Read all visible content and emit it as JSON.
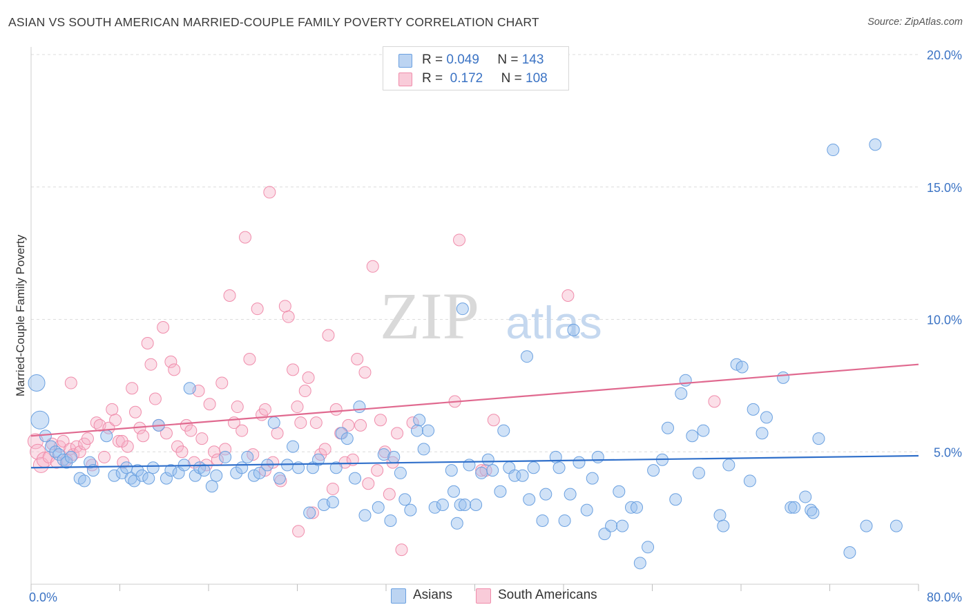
{
  "title": "ASIAN VS SOUTH AMERICAN MARRIED-COUPLE FAMILY POVERTY CORRELATION CHART",
  "source": "Source: ZipAtlas.com",
  "watermark": {
    "part1": "ZIP",
    "part2": "atlas"
  },
  "legend_top": [
    {
      "r_label": "R =",
      "r_value": "0.049",
      "n_label": "N =",
      "n_value": "143"
    },
    {
      "r_label": "R =",
      "r_value": "0.172",
      "n_label": "N =",
      "n_value": "108"
    }
  ],
  "legend_bottom": [
    "Asians",
    "South Americans"
  ],
  "chart_data": {
    "type": "scatter",
    "title": "ASIAN VS SOUTH AMERICAN MARRIED-COUPLE FAMILY POVERTY CORRELATION CHART",
    "xlabel": "",
    "ylabel": "Married-Couple Family Poverty",
    "xlim": [
      0,
      80
    ],
    "ylim": [
      0,
      20
    ],
    "x_tick_labels": [
      "0.0%",
      "80.0%"
    ],
    "y_tick_labels": [
      "5.0%",
      "10.0%",
      "15.0%",
      "20.0%"
    ],
    "y_ticks": [
      5,
      10,
      15,
      20
    ],
    "grid": "horizontal dashed",
    "legend_placement": "top-center and bottom",
    "colors": {
      "asians": "#6aa0e0",
      "south_americans": "#f08cab",
      "asians_line": "#2f6fca",
      "south_americans_line": "#e0698f"
    },
    "series": [
      {
        "name": "Asians",
        "r": 0.049,
        "n": 143,
        "trend": {
          "x": [
            0,
            80
          ],
          "y": [
            4.4,
            4.85
          ]
        },
        "points": [
          [
            0.5,
            7.6
          ],
          [
            0.8,
            6.2
          ],
          [
            1.3,
            5.6
          ],
          [
            1.8,
            5.2
          ],
          [
            2.2,
            5.0
          ],
          [
            2.5,
            4.9
          ],
          [
            2.9,
            4.7
          ],
          [
            3.2,
            4.6
          ],
          [
            3.6,
            4.8
          ],
          [
            4.4,
            4.0
          ],
          [
            4.8,
            3.9
          ],
          [
            5.3,
            4.6
          ],
          [
            5.6,
            4.3
          ],
          [
            6.8,
            5.6
          ],
          [
            7.5,
            4.1
          ],
          [
            8.2,
            4.2
          ],
          [
            8.6,
            4.4
          ],
          [
            9.0,
            4.0
          ],
          [
            9.3,
            3.9
          ],
          [
            9.6,
            4.3
          ],
          [
            10.0,
            4.1
          ],
          [
            10.6,
            4.0
          ],
          [
            11.0,
            4.4
          ],
          [
            11.5,
            6.0
          ],
          [
            12.2,
            4.0
          ],
          [
            12.6,
            4.3
          ],
          [
            13.3,
            4.2
          ],
          [
            13.8,
            4.5
          ],
          [
            14.3,
            7.4
          ],
          [
            14.8,
            4.1
          ],
          [
            15.2,
            4.4
          ],
          [
            15.6,
            4.3
          ],
          [
            16.3,
            3.7
          ],
          [
            16.7,
            4.1
          ],
          [
            17.5,
            4.8
          ],
          [
            18.5,
            4.2
          ],
          [
            19.0,
            4.4
          ],
          [
            19.5,
            4.8
          ],
          [
            20.1,
            4.1
          ],
          [
            20.6,
            4.2
          ],
          [
            21.3,
            4.5
          ],
          [
            21.9,
            6.1
          ],
          [
            22.4,
            4.0
          ],
          [
            23.1,
            4.5
          ],
          [
            23.6,
            5.2
          ],
          [
            24.1,
            4.4
          ],
          [
            25.1,
            2.7
          ],
          [
            25.4,
            4.4
          ],
          [
            25.9,
            4.7
          ],
          [
            26.4,
            3.0
          ],
          [
            27.2,
            3.1
          ],
          [
            27.5,
            4.4
          ],
          [
            28.0,
            5.7
          ],
          [
            28.5,
            5.5
          ],
          [
            29.2,
            4.0
          ],
          [
            29.6,
            6.7
          ],
          [
            30.1,
            2.6
          ],
          [
            31.3,
            2.9
          ],
          [
            31.8,
            4.9
          ],
          [
            32.4,
            2.4
          ],
          [
            32.7,
            4.8
          ],
          [
            33.3,
            4.2
          ],
          [
            33.7,
            3.2
          ],
          [
            34.2,
            2.8
          ],
          [
            35.0,
            6.2
          ],
          [
            34.8,
            5.8
          ],
          [
            35.4,
            5.1
          ],
          [
            35.8,
            5.8
          ],
          [
            36.4,
            2.9
          ],
          [
            37.1,
            3.0
          ],
          [
            37.9,
            4.3
          ],
          [
            38.1,
            3.5
          ],
          [
            38.4,
            2.3
          ],
          [
            38.7,
            3.0
          ],
          [
            38.9,
            10.4
          ],
          [
            39.1,
            3.0
          ],
          [
            39.5,
            4.5
          ],
          [
            40.1,
            3.0
          ],
          [
            40.6,
            4.2
          ],
          [
            41.2,
            4.7
          ],
          [
            41.6,
            4.3
          ],
          [
            42.3,
            3.5
          ],
          [
            42.6,
            5.8
          ],
          [
            43.1,
            4.4
          ],
          [
            43.6,
            4.1
          ],
          [
            44.3,
            4.1
          ],
          [
            44.7,
            8.6
          ],
          [
            44.9,
            3.2
          ],
          [
            45.3,
            4.4
          ],
          [
            46.1,
            2.4
          ],
          [
            46.4,
            3.4
          ],
          [
            47.3,
            4.8
          ],
          [
            47.6,
            4.4
          ],
          [
            48.1,
            2.4
          ],
          [
            48.6,
            3.4
          ],
          [
            48.9,
            9.6
          ],
          [
            49.4,
            4.6
          ],
          [
            50.1,
            2.8
          ],
          [
            50.6,
            4.0
          ],
          [
            51.1,
            4.8
          ],
          [
            51.7,
            1.9
          ],
          [
            52.3,
            2.2
          ],
          [
            53.0,
            3.5
          ],
          [
            53.3,
            2.2
          ],
          [
            54.1,
            2.9
          ],
          [
            54.6,
            2.9
          ],
          [
            54.9,
            0.8
          ],
          [
            55.6,
            1.4
          ],
          [
            56.1,
            4.3
          ],
          [
            56.9,
            4.7
          ],
          [
            57.4,
            5.9
          ],
          [
            58.1,
            3.2
          ],
          [
            58.6,
            7.2
          ],
          [
            59.0,
            7.7
          ],
          [
            59.6,
            5.6
          ],
          [
            60.2,
            4.2
          ],
          [
            60.6,
            5.8
          ],
          [
            62.1,
            2.6
          ],
          [
            62.4,
            2.2
          ],
          [
            62.9,
            4.5
          ],
          [
            63.6,
            8.3
          ],
          [
            64.1,
            8.2
          ],
          [
            64.8,
            3.9
          ],
          [
            65.1,
            6.6
          ],
          [
            65.9,
            5.7
          ],
          [
            66.3,
            6.3
          ],
          [
            67.8,
            7.8
          ],
          [
            68.5,
            2.9
          ],
          [
            68.8,
            2.9
          ],
          [
            69.8,
            3.3
          ],
          [
            70.3,
            2.8
          ],
          [
            70.5,
            2.7
          ],
          [
            71.0,
            5.5
          ],
          [
            72.3,
            16.4
          ],
          [
            73.8,
            1.2
          ],
          [
            75.3,
            2.2
          ],
          [
            76.1,
            16.6
          ],
          [
            78.0,
            2.2
          ]
        ]
      },
      {
        "name": "South Americans",
        "r": 0.172,
        "n": 108,
        "trend": {
          "x": [
            0,
            80
          ],
          "y": [
            5.6,
            8.3
          ]
        },
        "points": [
          [
            0.4,
            5.4
          ],
          [
            0.6,
            5.0
          ],
          [
            0.9,
            4.5
          ],
          [
            1.2,
            4.7
          ],
          [
            1.6,
            4.8
          ],
          [
            1.9,
            5.3
          ],
          [
            2.3,
            4.6
          ],
          [
            2.6,
            5.2
          ],
          [
            2.9,
            5.4
          ],
          [
            3.2,
            4.7
          ],
          [
            3.5,
            5.1
          ],
          [
            3.8,
            4.9
          ],
          [
            4.1,
            5.2
          ],
          [
            4.4,
            5.0
          ],
          [
            4.8,
            5.3
          ],
          [
            5.1,
            5.5
          ],
          [
            5.5,
            4.5
          ],
          [
            5.9,
            6.1
          ],
          [
            6.2,
            6.0
          ],
          [
            6.6,
            4.8
          ],
          [
            7.0,
            5.9
          ],
          [
            7.3,
            6.6
          ],
          [
            7.6,
            6.2
          ],
          [
            7.9,
            5.4
          ],
          [
            8.3,
            4.6
          ],
          [
            8.7,
            5.2
          ],
          [
            9.1,
            7.4
          ],
          [
            9.4,
            6.5
          ],
          [
            9.8,
            5.9
          ],
          [
            10.1,
            5.6
          ],
          [
            10.5,
            9.1
          ],
          [
            10.8,
            8.3
          ],
          [
            11.2,
            7.0
          ],
          [
            11.5,
            6.0
          ],
          [
            11.9,
            9.7
          ],
          [
            12.2,
            5.7
          ],
          [
            12.6,
            8.4
          ],
          [
            12.9,
            8.1
          ],
          [
            13.2,
            5.2
          ],
          [
            13.6,
            5.0
          ],
          [
            14.0,
            6.0
          ],
          [
            14.4,
            5.8
          ],
          [
            14.7,
            4.6
          ],
          [
            15.1,
            7.3
          ],
          [
            15.4,
            5.5
          ],
          [
            15.8,
            4.5
          ],
          [
            16.1,
            6.8
          ],
          [
            16.5,
            5.0
          ],
          [
            16.8,
            4.7
          ],
          [
            17.2,
            7.6
          ],
          [
            17.5,
            5.1
          ],
          [
            17.9,
            10.9
          ],
          [
            18.3,
            6.1
          ],
          [
            18.6,
            6.7
          ],
          [
            19.0,
            5.8
          ],
          [
            19.3,
            13.1
          ],
          [
            19.7,
            8.5
          ],
          [
            20.0,
            4.9
          ],
          [
            20.4,
            10.4
          ],
          [
            20.8,
            6.4
          ],
          [
            21.1,
            6.6
          ],
          [
            21.5,
            14.8
          ],
          [
            21.8,
            4.6
          ],
          [
            22.2,
            5.7
          ],
          [
            22.5,
            3.9
          ],
          [
            22.9,
            10.5
          ],
          [
            23.2,
            10.1
          ],
          [
            23.6,
            8.1
          ],
          [
            24.0,
            6.7
          ],
          [
            24.3,
            6.1
          ],
          [
            24.7,
            7.3
          ],
          [
            25.0,
            7.8
          ],
          [
            25.4,
            2.7
          ],
          [
            25.7,
            6.1
          ],
          [
            26.1,
            4.9
          ],
          [
            26.5,
            5.1
          ],
          [
            26.8,
            9.4
          ],
          [
            27.2,
            3.6
          ],
          [
            27.5,
            6.6
          ],
          [
            27.9,
            5.7
          ],
          [
            28.3,
            4.6
          ],
          [
            28.6,
            6.0
          ],
          [
            29.0,
            4.7
          ],
          [
            29.4,
            8.5
          ],
          [
            29.7,
            6.0
          ],
          [
            30.1,
            8.0
          ],
          [
            30.4,
            3.8
          ],
          [
            30.8,
            12.0
          ],
          [
            31.2,
            4.3
          ],
          [
            31.5,
            6.2
          ],
          [
            31.9,
            5.0
          ],
          [
            32.3,
            3.4
          ],
          [
            32.6,
            4.6
          ],
          [
            33.0,
            5.7
          ],
          [
            33.4,
            1.3
          ],
          [
            34.4,
            6.1
          ],
          [
            38.2,
            6.9
          ],
          [
            38.6,
            13.0
          ],
          [
            40.6,
            4.3
          ],
          [
            41.0,
            4.3
          ],
          [
            41.7,
            6.2
          ],
          [
            48.4,
            10.9
          ],
          [
            61.6,
            6.9
          ],
          [
            3.6,
            7.6
          ],
          [
            8.2,
            5.4
          ],
          [
            21.1,
            4.3
          ],
          [
            24.1,
            2.0
          ]
        ]
      }
    ]
  }
}
